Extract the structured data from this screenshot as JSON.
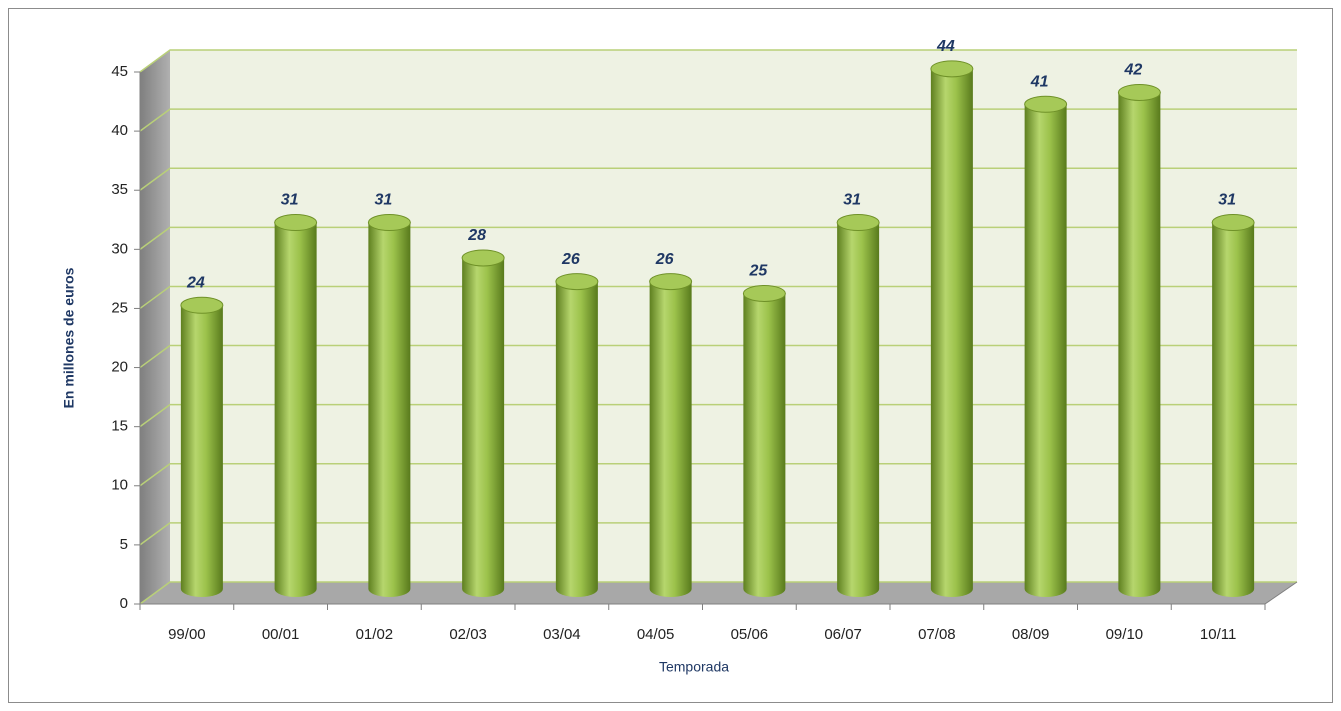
{
  "chart_data": {
    "type": "bar3d",
    "categories": [
      "99/00",
      "00/01",
      "01/02",
      "02/03",
      "03/04",
      "04/05",
      "05/06",
      "06/07",
      "07/08",
      "08/09",
      "09/10",
      "10/11"
    ],
    "values": [
      24,
      31,
      31,
      28,
      26,
      26,
      25,
      31,
      44,
      41,
      42,
      31
    ],
    "color": "#8cb43c",
    "xlabel": "Temporada",
    "ylabel": "En millones de euros",
    "ylim": [
      0,
      45
    ],
    "yticks": [
      0,
      5,
      10,
      15,
      20,
      25,
      30,
      35,
      40,
      45
    ],
    "grid": true
  }
}
